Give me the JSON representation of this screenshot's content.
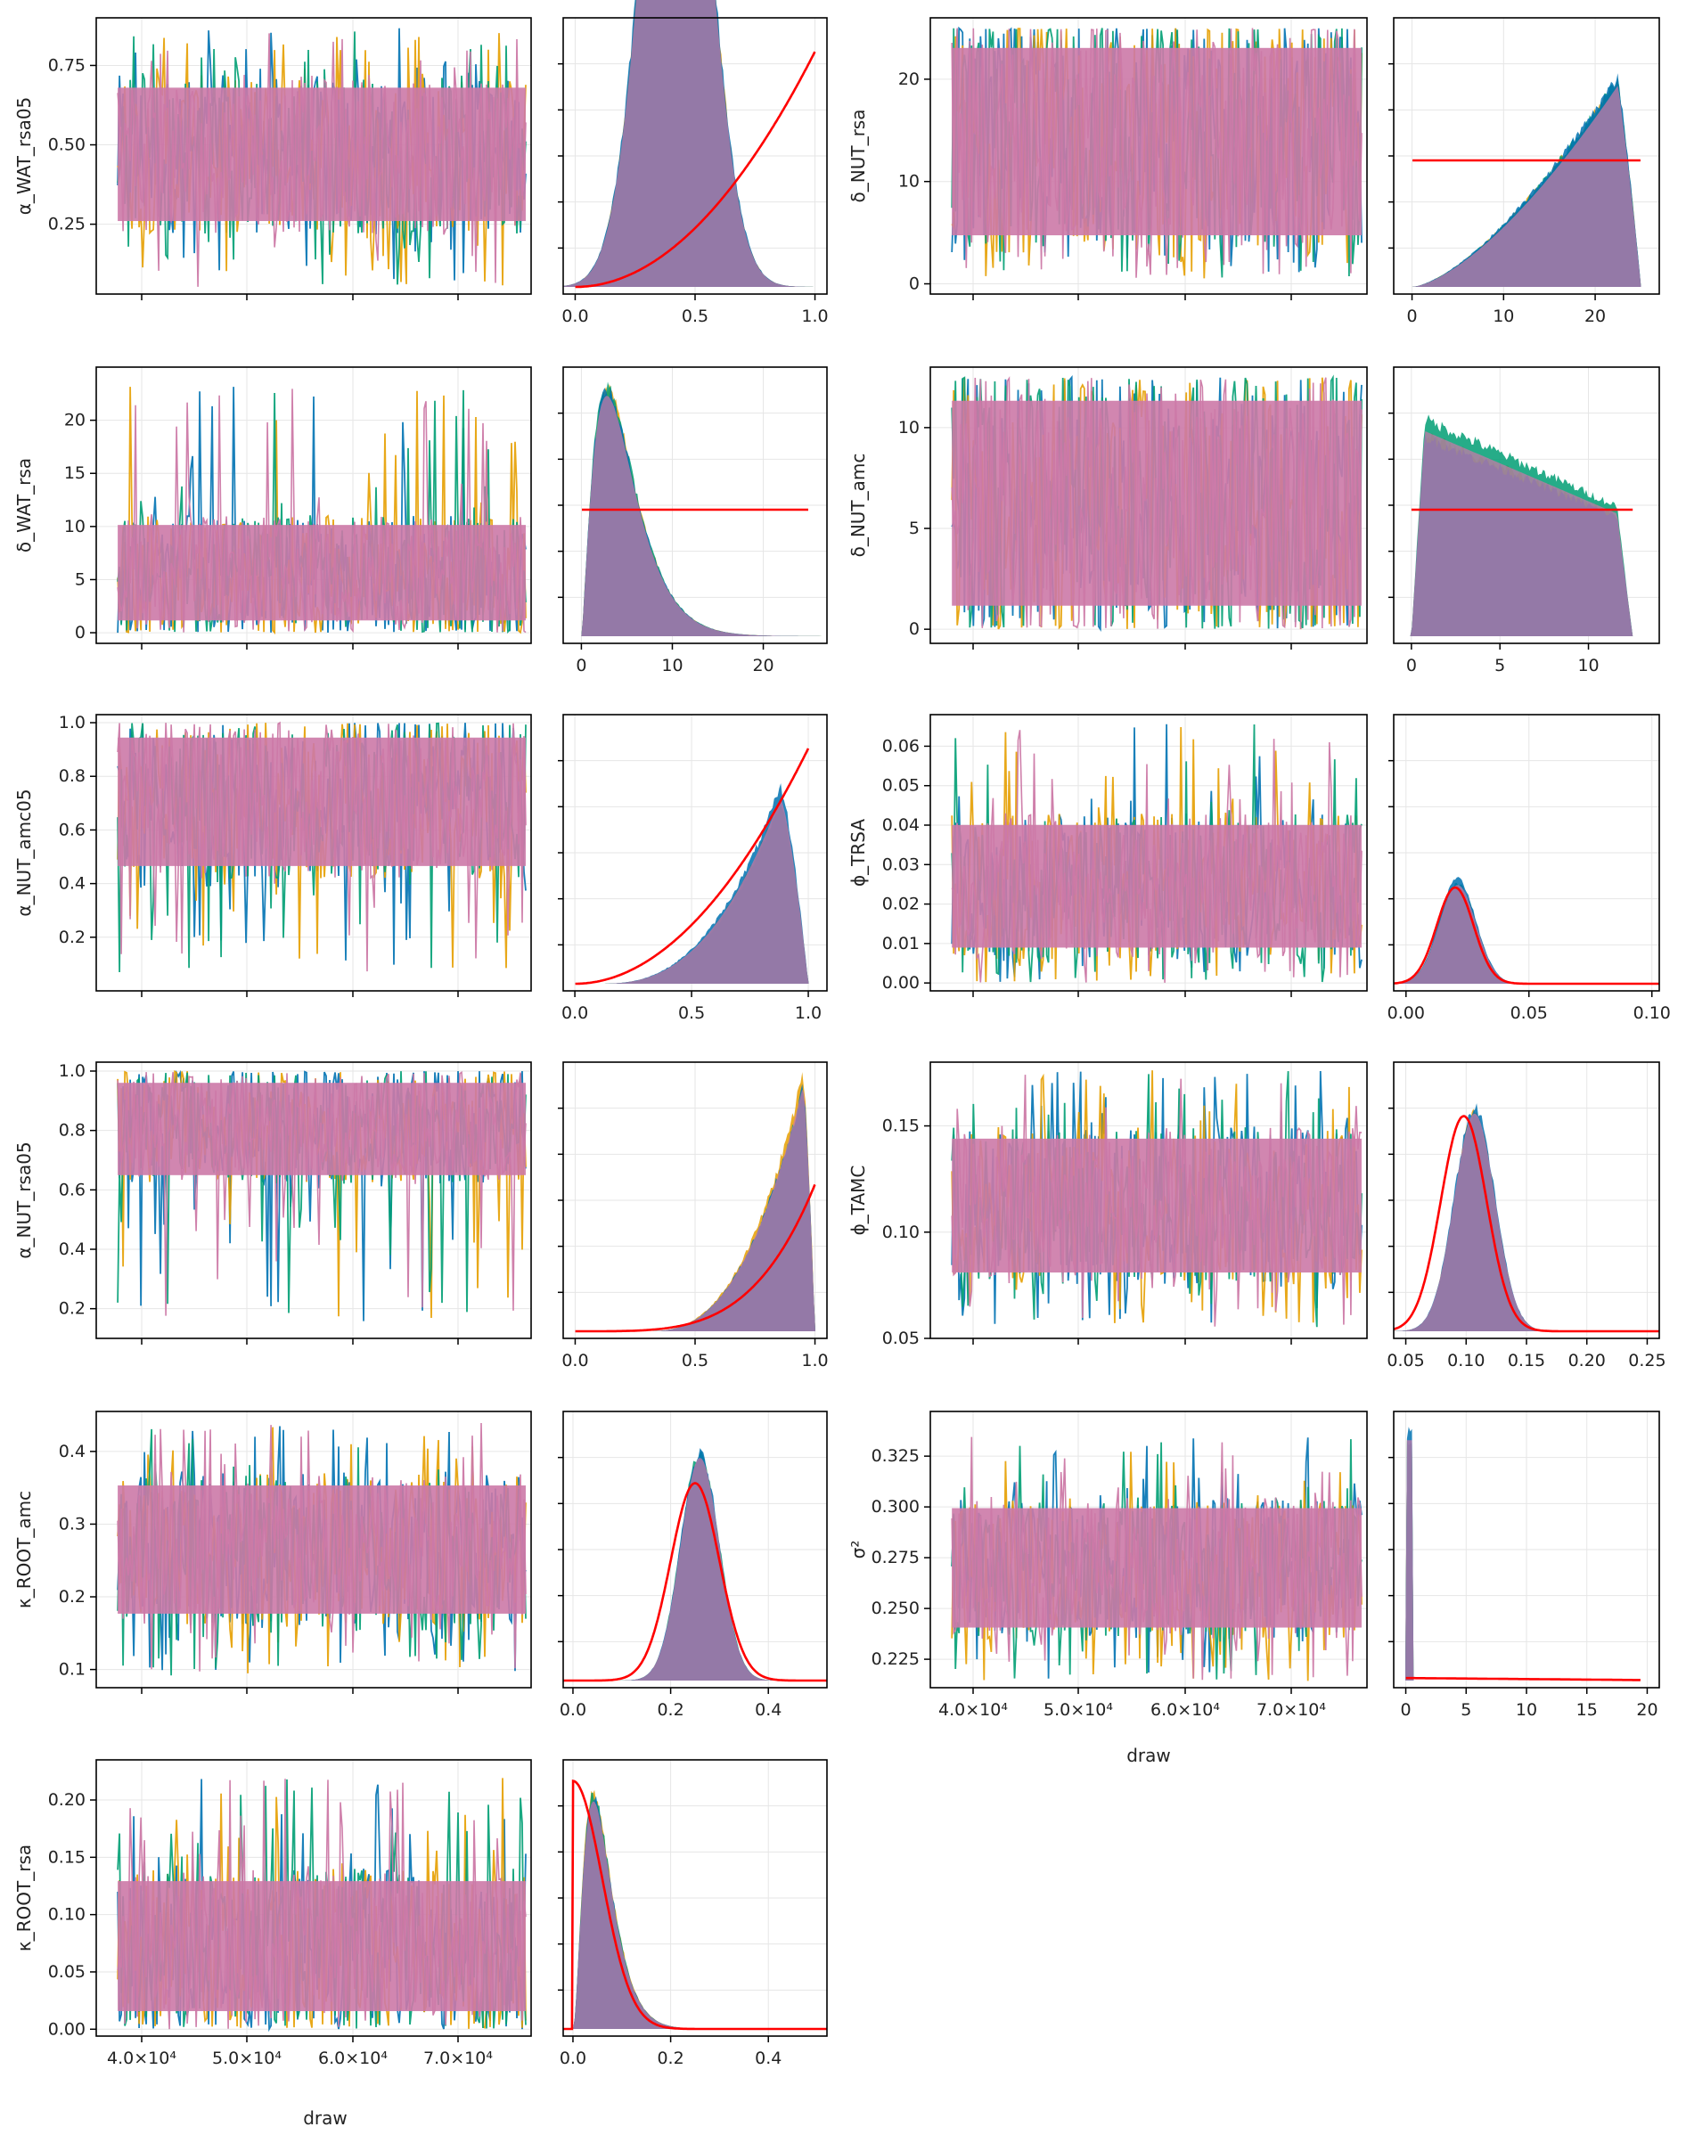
{
  "chart_data": {
    "type": "line",
    "description_kind": "MCMC trace and density plots",
    "chain_colors": [
      "#0072B2",
      "#E69F00",
      "#009E73",
      "#CC79A7"
    ],
    "prior_color": "#FF0000",
    "trace_xticks": [
      "4.0×10⁴",
      "5.0×10⁴",
      "6.0×10⁴",
      "7.0×10⁴"
    ],
    "trace_xlim": [
      35000,
      75500
    ],
    "xlabel": "draw",
    "panels": [
      {
        "param": "α_WAT_rsa05",
        "trace": {
          "mean": 0.45,
          "lo": 0.22,
          "hi": 0.72,
          "spike_lo": 0.05,
          "spike_hi": 0.87,
          "ylim": [
            0.03,
            0.9
          ],
          "yticks": [
            0.25,
            0.5,
            0.75
          ],
          "ytick_labels": [
            "0.25",
            "0.50",
            "0.75"
          ]
        },
        "density": {
          "xlim": [
            -0.05,
            1.05
          ],
          "xticks": [
            0.0,
            0.5,
            1.0
          ],
          "xtick_labels": [
            "0.0",
            "0.5",
            "1.0"
          ],
          "ymax": 3.1,
          "posterior": {
            "kind": "normal",
            "mu": 0.42,
            "sd": 0.13,
            "scale": 2.55
          },
          "prior": {
            "kind": "beta",
            "a": 3,
            "b": 1,
            "lo": 0,
            "hi": 1
          }
        }
      },
      {
        "param": "δ_NUT_rsa",
        "trace": {
          "mean": 14,
          "lo": 3,
          "hi": 24.8,
          "spike_lo": 0.5,
          "spike_hi": 25,
          "ylim": [
            -1,
            26
          ],
          "yticks": [
            0,
            10,
            20
          ],
          "ytick_labels": [
            "0",
            "10",
            "20"
          ]
        },
        "density": {
          "xlim": [
            -2,
            27
          ],
          "xticks": [
            0,
            10,
            20
          ],
          "xtick_labels": [
            "0",
            "10",
            "20"
          ],
          "ymax": 0.09,
          "posterior": {
            "kind": "linear",
            "lo": 0,
            "hi": 25,
            "peak": 0.084
          },
          "prior": {
            "kind": "uniform",
            "lo": 0,
            "hi": 25
          }
        }
      },
      {
        "param": "δ_WAT_rsa",
        "trace": {
          "mean": 4,
          "lo": 0.3,
          "hi": 11,
          "spike_lo": 0,
          "spike_hi": 23.5,
          "ylim": [
            -1,
            25
          ],
          "yticks": [
            0,
            5,
            10,
            15,
            20
          ],
          "ytick_labels": [
            "0",
            "5",
            "10",
            "15",
            "20"
          ]
        },
        "density": {
          "xlim": [
            -2,
            27
          ],
          "xticks": [
            0,
            10,
            20
          ],
          "xtick_labels": [
            "0",
            "10",
            "20"
          ],
          "ymax": 0.22,
          "posterior": {
            "kind": "gamma",
            "k": 2.4,
            "theta": 2.0
          },
          "prior": {
            "kind": "uniform",
            "lo": 0,
            "hi": 25
          }
        }
      },
      {
        "param": "δ_NUT_amc",
        "trace": {
          "mean": 6,
          "lo": 0.2,
          "hi": 12.3,
          "spike_lo": 0,
          "spike_hi": 12.5,
          "ylim": [
            -0.7,
            13
          ],
          "yticks": [
            0,
            5,
            10
          ],
          "ytick_labels": [
            "0",
            "5",
            "10"
          ]
        },
        "density": {
          "xlim": [
            -1,
            14
          ],
          "xticks": [
            0,
            5,
            10
          ],
          "xtick_labels": [
            "0",
            "5",
            "10"
          ],
          "ymax": 0.12,
          "posterior": {
            "kind": "plateau",
            "lo": 0,
            "hi": 12.5
          },
          "prior": {
            "kind": "uniform",
            "lo": 0,
            "hi": 12.5
          }
        }
      },
      {
        "param": "α_NUT_amc05",
        "trace": {
          "mean": 0.78,
          "lo": 0.42,
          "hi": 0.99,
          "spike_lo": 0.06,
          "spike_hi": 1.0,
          "ylim": [
            0.0,
            1.03
          ],
          "yticks": [
            0.2,
            0.4,
            0.6,
            0.8,
            1.0
          ],
          "ytick_labels": [
            "0.2",
            "0.4",
            "0.6",
            "0.8",
            "1.0"
          ]
        },
        "density": {
          "xlim": [
            -0.05,
            1.08
          ],
          "xticks": [
            0.0,
            0.5,
            1.0
          ],
          "xtick_labels": [
            "0.0",
            "0.5",
            "1.0"
          ],
          "ymax": 3.2,
          "posterior": {
            "kind": "leftskew",
            "lo": 0.1,
            "hi": 1.0,
            "mode": 0.88,
            "peak": 2.35
          },
          "prior": {
            "kind": "beta",
            "a": 3,
            "b": 1,
            "lo": 0,
            "hi": 1
          }
        }
      },
      {
        "param": "ϕ_TRSA",
        "trace": {
          "mean": 0.022,
          "lo": 0.006,
          "hi": 0.043,
          "spike_lo": 0.0,
          "spike_hi": 0.066,
          "ylim": [
            -0.002,
            0.068
          ],
          "yticks": [
            0,
            0.01,
            0.02,
            0.03,
            0.04,
            0.05,
            0.06
          ],
          "ytick_labels": [
            "0.00",
            "0.01",
            "0.02",
            "0.03",
            "0.04",
            "0.05",
            "0.06"
          ]
        },
        "density": {
          "xlim": [
            -0.005,
            0.103
          ],
          "xticks": [
            0,
            0.05,
            0.1
          ],
          "xtick_labels": [
            "0.00",
            "0.05",
            "0.10"
          ],
          "ymax": 60,
          "posterior": {
            "kind": "normal",
            "mu": 0.021,
            "sd": 0.0075,
            "scale": 0.39
          },
          "prior": {
            "kind": "normal",
            "mu": 0.02,
            "sd": 0.0075,
            "scale": 0.38
          }
        }
      },
      {
        "param": "α_NUT_rsa05",
        "trace": {
          "mean": 0.87,
          "lo": 0.62,
          "hi": 0.99,
          "spike_lo": 0.15,
          "spike_hi": 1.0,
          "ylim": [
            0.1,
            1.03
          ],
          "yticks": [
            0.2,
            0.4,
            0.6,
            0.8,
            1.0
          ],
          "ytick_labels": [
            "0.2",
            "0.4",
            "0.6",
            "0.8",
            "1.0"
          ]
        },
        "density": {
          "xlim": [
            -0.05,
            1.05
          ],
          "xticks": [
            0.0,
            0.5,
            1.0
          ],
          "xtick_labels": [
            "0.0",
            "0.5",
            "1.0"
          ],
          "ymax": 6.2,
          "posterior": {
            "kind": "leftskew",
            "lo": 0.3,
            "hi": 1.0,
            "mode": 0.95,
            "peak": 6.0
          },
          "prior": {
            "kind": "beta",
            "a": 5,
            "b": 1,
            "lo": 0,
            "hi": 1,
            "cap": 3.6
          }
        }
      },
      {
        "param": "ϕ_TAMC",
        "trace": {
          "mean": 0.11,
          "lo": 0.075,
          "hi": 0.15,
          "spike_lo": 0.055,
          "spike_hi": 0.177,
          "ylim": [
            0.05,
            0.18
          ],
          "yticks": [
            0.05,
            0.1,
            0.15
          ],
          "ytick_labels": [
            "0.05",
            "0.10",
            "0.15"
          ]
        },
        "density": {
          "xlim": [
            0.04,
            0.26
          ],
          "xticks": [
            0.05,
            0.1,
            0.15,
            0.2,
            0.25
          ],
          "xtick_labels": [
            "0.05",
            "0.10",
            "0.15",
            "0.20",
            "0.25"
          ],
          "ymax": 23,
          "posterior": {
            "kind": "normal",
            "mu": 0.107,
            "sd": 0.017,
            "scale": 0.86
          },
          "prior": {
            "kind": "normal",
            "mu": 0.098,
            "sd": 0.019,
            "scale": 0.85,
            "floor": 0.8
          }
        }
      },
      {
        "param": "κ_ROOT_amc",
        "trace": {
          "mean": 0.26,
          "lo": 0.16,
          "hi": 0.37,
          "spike_lo": 0.09,
          "spike_hi": 0.44,
          "ylim": [
            0.075,
            0.455
          ],
          "yticks": [
            0.1,
            0.2,
            0.3,
            0.4
          ],
          "ytick_labels": [
            "0.1",
            "0.2",
            "0.3",
            "0.4"
          ]
        },
        "density": {
          "xlim": [
            -0.02,
            0.52
          ],
          "xticks": [
            0,
            0.2,
            0.4
          ],
          "xtick_labels": [
            "0.0",
            "0.2",
            "0.4"
          ],
          "ymax": 9,
          "posterior": {
            "kind": "normal",
            "mu": 0.26,
            "sd": 0.04,
            "scale": 0.88
          },
          "prior": {
            "kind": "normal",
            "mu": 0.25,
            "sd": 0.05,
            "scale": 0.78
          }
        }
      },
      {
        "param": "σ²",
        "trace": {
          "mean": 0.27,
          "lo": 0.235,
          "hi": 0.305,
          "spike_lo": 0.214,
          "spike_hi": 0.335,
          "ylim": [
            0.211,
            0.347
          ],
          "yticks": [
            0.225,
            0.25,
            0.275,
            0.3,
            0.325
          ],
          "ytick_labels": [
            "0.225",
            "0.250",
            "0.275",
            "0.300",
            "0.325"
          ]
        },
        "density": {
          "xlim": [
            -1,
            21
          ],
          "xticks": [
            0,
            5,
            10,
            15,
            20
          ],
          "xtick_labels": [
            "0",
            "5",
            "10",
            "15",
            "20"
          ],
          "ymax": 1.0,
          "posterior": {
            "kind": "spike",
            "at": 0.27,
            "height": 0.95
          },
          "prior": {
            "kind": "flat",
            "lo": 0,
            "hi": 19.5,
            "y0": 0.01,
            "y1": 0.002
          }
        }
      },
      {
        "param": "κ_ROOT_rsa",
        "trace": {
          "mean": 0.065,
          "lo": 0.005,
          "hi": 0.14,
          "spike_lo": 0.0,
          "spike_hi": 0.22,
          "ylim": [
            -0.006,
            0.235
          ],
          "yticks": [
            0,
            0.05,
            0.1,
            0.15,
            0.2
          ],
          "ytick_labels": [
            "0.00",
            "0.05",
            "0.10",
            "0.15",
            "0.20"
          ]
        },
        "density": {
          "xlim": [
            -0.02,
            0.52
          ],
          "xticks": [
            0,
            0.2,
            0.4
          ],
          "xtick_labels": [
            "0.0",
            "0.2",
            "0.4"
          ],
          "ymax": 20,
          "posterior": {
            "kind": "gamma",
            "k": 3.0,
            "theta": 0.021,
            "scale": 0.9
          },
          "prior": {
            "kind": "halfnormal",
            "sd": 0.06,
            "scale": 0.98
          }
        }
      }
    ]
  }
}
